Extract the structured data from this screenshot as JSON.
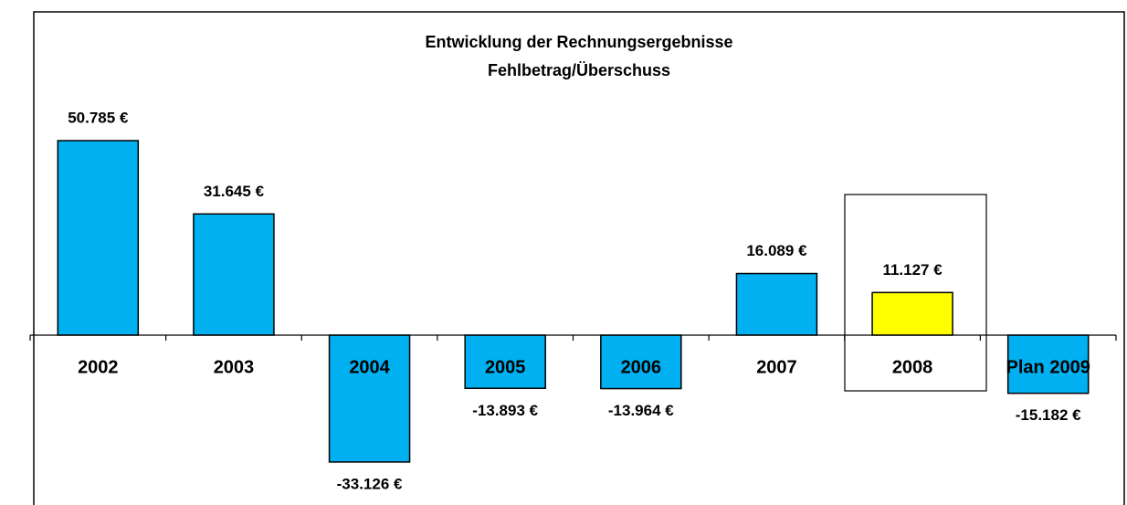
{
  "chart_data": {
    "type": "bar",
    "title": "Entwicklung der Rechnungsergebnisse",
    "subtitle": "Fehlbetrag/Überschuss",
    "categories": [
      "2002",
      "2003",
      "2004",
      "2005",
      "2006",
      "2007",
      "2008",
      "Plan 2009"
    ],
    "values": [
      50785,
      31645,
      -33126,
      -13893,
      -13964,
      16089,
      11127,
      -15182
    ],
    "value_labels": [
      "50.785 €",
      "31.645 €",
      "-33.126 €",
      "-13.893 €",
      "-13.964 €",
      "16.089 €",
      "11.127 €",
      "-15.182 €"
    ],
    "colors": [
      "#00b0f0",
      "#00b0f0",
      "#00b0f0",
      "#00b0f0",
      "#00b0f0",
      "#00b0f0",
      "#ffff00",
      "#00b0f0"
    ]
  }
}
